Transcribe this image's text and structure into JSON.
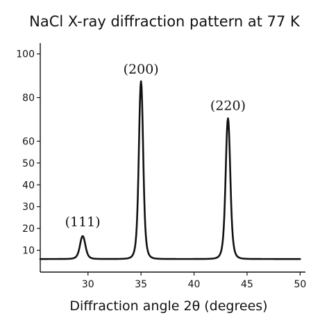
{
  "chart_data": {
    "type": "line",
    "title": "NaCl X-ray diffraction pattern at 77 K",
    "xlabel": "Diffraction angle 2θ (degrees)",
    "ylabel": "",
    "xlim": [
      25.5,
      50.5
    ],
    "ylim": [
      0,
      105
    ],
    "xticks": [
      30,
      35,
      40,
      45,
      50
    ],
    "yticks": [
      10,
      20,
      30,
      40,
      50,
      60,
      80,
      100
    ],
    "grid": false,
    "baseline": 6,
    "peaks": [
      {
        "label": "(111)",
        "x": 29.5,
        "y": 16.5
      },
      {
        "label": "(200)",
        "x": 35.0,
        "y": 87.5
      },
      {
        "label": "(220)",
        "x": 43.2,
        "y": 70.5
      }
    ],
    "series": [
      {
        "x": [
          25.5,
          27.0,
          28.0,
          28.5,
          29.0,
          29.2,
          29.4,
          29.5,
          29.6,
          29.8,
          30.0,
          30.5,
          31.0,
          32.0,
          33.0,
          33.8,
          34.2,
          34.5,
          34.7,
          34.85,
          35.0,
          35.15,
          35.3,
          35.5,
          35.8,
          36.2,
          37.0,
          38.0,
          40.0,
          41.5,
          42.2,
          42.6,
          42.9,
          43.05,
          43.2,
          43.35,
          43.5,
          43.8,
          44.2,
          44.8,
          46.0,
          48.0,
          50.0
        ],
        "y": [
          6,
          6.1,
          6.5,
          7.5,
          11.5,
          14.5,
          16.2,
          16.5,
          16.1,
          14,
          10.5,
          7.2,
          6.3,
          6.1,
          6.5,
          9,
          20,
          45,
          72,
          84,
          87.5,
          84,
          72,
          45,
          20,
          9,
          6.8,
          6.2,
          6.2,
          6.8,
          10,
          26,
          52,
          66,
          70.5,
          66,
          52,
          26,
          10,
          7,
          6.2,
          6,
          6
        ]
      }
    ]
  }
}
